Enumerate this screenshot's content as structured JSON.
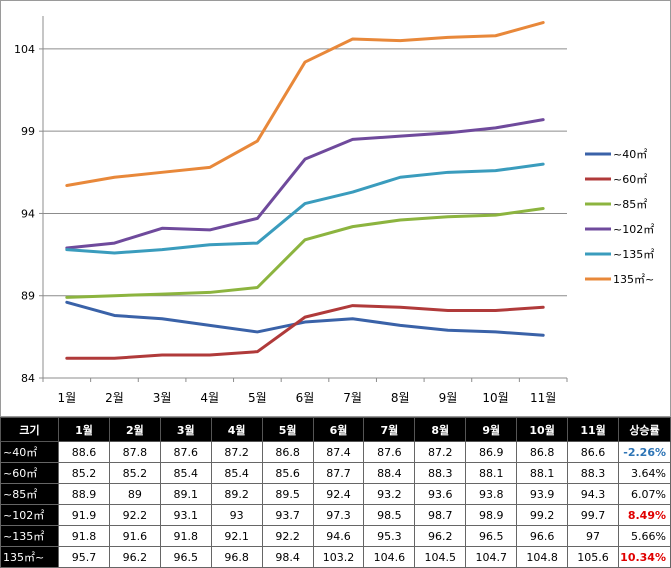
{
  "chart_data": {
    "type": "line",
    "categories": [
      "1월",
      "2월",
      "3월",
      "4월",
      "5월",
      "6월",
      "7월",
      "8월",
      "9월",
      "10월",
      "11월"
    ],
    "ylim": [
      84,
      106
    ],
    "yticks": [
      84,
      89,
      94,
      99,
      104
    ],
    "grid": true,
    "legend_position": "right",
    "title": "",
    "xlabel": "",
    "ylabel": "",
    "series": [
      {
        "name": "~40㎡",
        "color": "#3a62a8",
        "values": [
          88.6,
          87.8,
          87.6,
          87.2,
          86.8,
          87.4,
          87.6,
          87.2,
          86.9,
          86.8,
          86.6
        ]
      },
      {
        "name": "~60㎡",
        "color": "#b03a3a",
        "values": [
          85.2,
          85.2,
          85.4,
          85.4,
          85.6,
          87.7,
          88.4,
          88.3,
          88.1,
          88.1,
          88.3
        ]
      },
      {
        "name": "~85㎡",
        "color": "#8cb43f",
        "values": [
          88.9,
          89,
          89.1,
          89.2,
          89.5,
          92.4,
          93.2,
          93.6,
          93.8,
          93.9,
          94.3
        ]
      },
      {
        "name": "~102㎡",
        "color": "#6f4a9c",
        "values": [
          91.9,
          92.2,
          93.1,
          93,
          93.7,
          97.3,
          98.5,
          98.7,
          98.9,
          99.2,
          99.7
        ]
      },
      {
        "name": "~135㎡",
        "color": "#3a9cbd",
        "values": [
          91.8,
          91.6,
          91.8,
          92.1,
          92.2,
          94.6,
          95.3,
          96.2,
          96.5,
          96.6,
          97
        ]
      },
      {
        "name": "135㎡~",
        "color": "#e8883a",
        "values": [
          95.7,
          96.2,
          96.5,
          96.8,
          98.4,
          103.2,
          104.6,
          104.5,
          104.7,
          104.8,
          105.6
        ]
      }
    ]
  },
  "table": {
    "header": [
      "크기",
      "1월",
      "2월",
      "3월",
      "4월",
      "5월",
      "6월",
      "7월",
      "8월",
      "9월",
      "10월",
      "11월",
      "상승률"
    ],
    "rows": [
      {
        "label": "~40㎡",
        "values": [
          "88.6",
          "87.8",
          "87.6",
          "87.2",
          "86.8",
          "87.4",
          "87.6",
          "87.2",
          "86.9",
          "86.8",
          "86.6"
        ],
        "rate": "-2.26%",
        "rate_style": "neg"
      },
      {
        "label": "~60㎡",
        "values": [
          "85.2",
          "85.2",
          "85.4",
          "85.4",
          "85.6",
          "87.7",
          "88.4",
          "88.3",
          "88.1",
          "88.1",
          "88.3"
        ],
        "rate": "3.64%",
        "rate_style": ""
      },
      {
        "label": "~85㎡",
        "values": [
          "88.9",
          "89",
          "89.1",
          "89.2",
          "89.5",
          "92.4",
          "93.2",
          "93.6",
          "93.8",
          "93.9",
          "94.3"
        ],
        "rate": "6.07%",
        "rate_style": ""
      },
      {
        "label": "~102㎡",
        "values": [
          "91.9",
          "92.2",
          "93.1",
          "93",
          "93.7",
          "97.3",
          "98.5",
          "98.7",
          "98.9",
          "99.2",
          "99.7"
        ],
        "rate": "8.49%",
        "rate_style": "hi"
      },
      {
        "label": "~135㎡",
        "values": [
          "91.8",
          "91.6",
          "91.8",
          "92.1",
          "92.2",
          "94.6",
          "95.3",
          "96.2",
          "96.5",
          "96.6",
          "97"
        ],
        "rate": "5.66%",
        "rate_style": ""
      },
      {
        "label": "135㎡~",
        "values": [
          "95.7",
          "96.2",
          "96.5",
          "96.8",
          "98.4",
          "103.2",
          "104.6",
          "104.5",
          "104.7",
          "104.8",
          "105.6"
        ],
        "rate": "10.34%",
        "rate_style": "hi"
      }
    ]
  }
}
